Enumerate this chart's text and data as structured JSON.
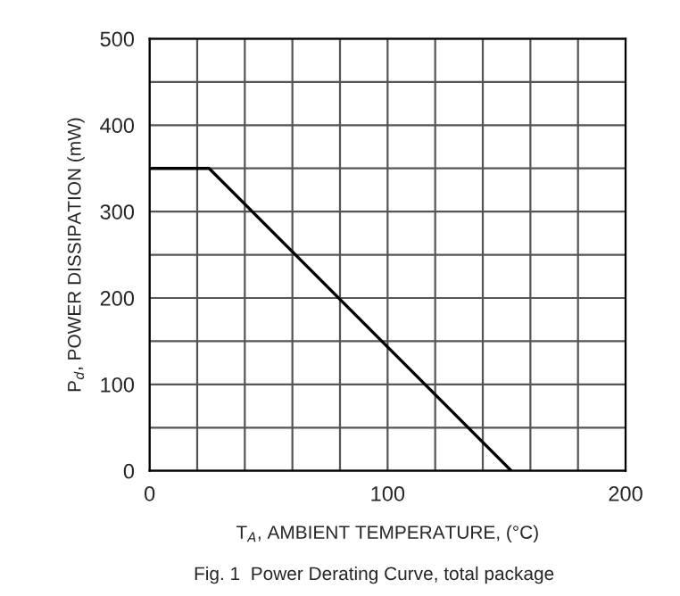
{
  "chart_data": {
    "type": "line",
    "xlabel": "T$_{A}$, AMBIENT TEMPERATURE, (°C)",
    "ylabel": "P$_{d}$, POWER DISSIPATION (mW)",
    "annotations": [
      "Fig. 1  Power Derating Curve, total package"
    ],
    "x": [
      0,
      25,
      152
    ],
    "series": [
      {
        "color": "#000000",
        "values": [
          350,
          350,
          0
        ]
      }
    ],
    "xlim": [
      0,
      200
    ],
    "ylim": [
      0,
      500
    ],
    "xticks": [
      0,
      {
        "value": 20,
        "label": null
      },
      {
        "value": 40,
        "label": null
      },
      {
        "value": 60,
        "label": null
      },
      {
        "value": 80,
        "label": null
      },
      100,
      {
        "value": 120,
        "label": null
      },
      {
        "value": 140,
        "label": null
      },
      {
        "value": 160,
        "label": null
      },
      {
        "value": 180,
        "label": null
      },
      200
    ],
    "yticks": [
      0,
      {
        "value": 50,
        "label": null
      },
      100,
      {
        "value": 150,
        "label": null
      },
      200,
      {
        "value": 250,
        "label": null
      },
      300,
      {
        "value": 350,
        "label": null
      },
      400,
      {
        "value": 450,
        "label": null
      },
      500
    ],
    "grid": true,
    "marker": "none",
    "line_style": "solid"
  }
}
